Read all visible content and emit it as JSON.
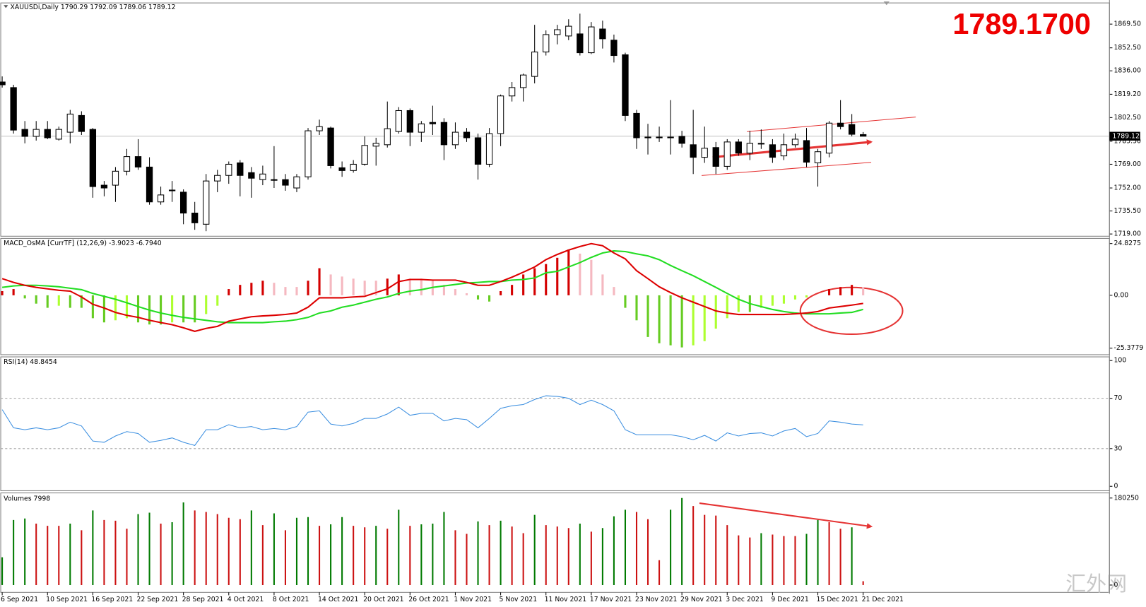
{
  "chart_data": [
    {
      "type": "candlestick",
      "title": "XAUUSDi,Daily  1790.29 1792.09 1789.06 1789.12",
      "annotation": "1789.1700",
      "categories": [
        "6 Sep 2021",
        null,
        null,
        null,
        "10 Sep 2021",
        null,
        null,
        null,
        "16 Sep 2021",
        null,
        null,
        null,
        "22 Sep 2021",
        null,
        null,
        null,
        "28 Sep 2021",
        null,
        null,
        null,
        "4 Oct 2021",
        null,
        null,
        null,
        "8 Oct 2021",
        null,
        null,
        null,
        "14 Oct 2021",
        null,
        null,
        null,
        "20 Oct 2021",
        null,
        null,
        null,
        "26 Oct 2021",
        null,
        null,
        null,
        "1 Nov 2021",
        null,
        null,
        null,
        "5 Nov 2021",
        null,
        null,
        null,
        "11 Nov 2021",
        null,
        null,
        null,
        "17 Nov 2021",
        null,
        null,
        null,
        "23 Nov 2021",
        null,
        null,
        null,
        "29 Nov 2021",
        null,
        null,
        null,
        "3 Dec 2021",
        null,
        null,
        null,
        "9 Dec 2021",
        null,
        null,
        null,
        "15 Dec 2021",
        null,
        null,
        null,
        "21 Dec 2021"
      ],
      "open": [
        1828,
        1824,
        1794,
        1789,
        1794,
        1787,
        1792,
        1804,
        1794,
        1754,
        1754,
        1764,
        1774.5,
        1767,
        1742,
        1750,
        1749,
        1734,
        1726,
        1757,
        1761,
        1770,
        1763,
        1758,
        1758,
        1758,
        1752,
        1760,
        1793,
        1795,
        1766.5,
        1764.5,
        1769,
        1782,
        1783,
        1792.5,
        1807.5,
        1792,
        1799,
        1799,
        1783,
        1792,
        1788,
        1769,
        1791,
        1818,
        1824,
        1832,
        1849.5,
        1862,
        1861,
        1862.5,
        1849,
        1866,
        1858,
        1847.5,
        1805.5,
        1788,
        1788.5,
        1788,
        1789,
        1783,
        1774,
        1781,
        1767.5,
        1785,
        1777,
        1784,
        1783,
        1775,
        1783,
        1786,
        1770,
        1777,
        1798.5,
        1797.5,
        1790.29
      ],
      "high": [
        1832,
        1826,
        1800,
        1800,
        1800,
        1796,
        1808,
        1807,
        1795,
        1757,
        1767,
        1780,
        1787,
        1774,
        1753,
        1757,
        1751,
        1742,
        1762,
        1765,
        1771,
        1772,
        1767,
        1768,
        1782,
        1762,
        1762,
        1795,
        1801,
        1796,
        1771,
        1772,
        1789,
        1788,
        1814,
        1810,
        1809,
        1800,
        1811,
        1802,
        1799,
        1795,
        1791,
        1795,
        1819,
        1828,
        1834,
        1869,
        1865,
        1869,
        1873,
        1877,
        1871,
        1872,
        1862,
        1849,
        1808,
        1798,
        1796,
        1815,
        1793,
        1808,
        1796,
        1785,
        1787,
        1787,
        1793,
        1794,
        1787,
        1791,
        1791,
        1795,
        1780,
        1800,
        1815,
        1805,
        1792.09
      ],
      "low": [
        1824,
        1791,
        1784,
        1786,
        1787,
        1786,
        1784,
        1790,
        1745,
        1746,
        1742,
        1761,
        1765,
        1740,
        1740,
        1742,
        1726,
        1722,
        1721,
        1749,
        1755,
        1746,
        1745,
        1754,
        1752,
        1750,
        1749,
        1758,
        1790,
        1766,
        1760,
        1763,
        1768,
        1768,
        1781,
        1791,
        1782,
        1785,
        1790,
        1772,
        1780,
        1785,
        1758,
        1767,
        1782,
        1814,
        1814,
        1827,
        1847,
        1855,
        1858,
        1847,
        1848,
        1852,
        1842,
        1800,
        1780,
        1776,
        1785,
        1776,
        1781,
        1762,
        1770,
        1762,
        1765,
        1775,
        1772,
        1780,
        1770,
        1772,
        1781,
        1767,
        1753,
        1774,
        1794,
        1789,
        1789.06
      ],
      "close": [
        1826,
        1793.5,
        1789,
        1794,
        1788,
        1794,
        1805,
        1792.5,
        1753,
        1752,
        1764,
        1774.5,
        1767,
        1742,
        1747,
        1750.5,
        1734,
        1727,
        1757,
        1761,
        1769,
        1761,
        1759,
        1762,
        1757.5,
        1754,
        1760,
        1793,
        1796,
        1768,
        1764.5,
        1769,
        1782.5,
        1784,
        1794.5,
        1807.5,
        1792,
        1798,
        1798,
        1783,
        1792,
        1788,
        1769,
        1791,
        1818,
        1824,
        1833,
        1849.5,
        1862,
        1865.5,
        1868,
        1849,
        1867.5,
        1859,
        1847,
        1804,
        1788,
        1788.5,
        1788,
        1788.5,
        1784,
        1774,
        1780.5,
        1767.5,
        1785,
        1777,
        1784,
        1783.5,
        1774,
        1783,
        1787,
        1770.5,
        1778,
        1798.5,
        1796,
        1790.5,
        1789.12
      ],
      "up_color": "#ffffff",
      "down_color": "#000000",
      "line_color": "#000000",
      "ylim": [
        1717.4,
        1884.7
      ],
      "yticks": [
        {
          "value": 1869.5,
          "label": "1869.50"
        },
        {
          "value": 1852.5,
          "label": "1852.50"
        },
        {
          "value": 1836,
          "label": "1836.00"
        },
        {
          "value": 1819.2,
          "label": "1819.20"
        },
        {
          "value": 1802.5,
          "label": "1802.50"
        },
        {
          "value": 1785.5,
          "label": "1785.50"
        },
        {
          "value": 1769,
          "label": "1769.00"
        },
        {
          "value": 1752,
          "label": "1752.00"
        },
        {
          "value": 1735.5,
          "label": "1735.50"
        },
        {
          "value": 1719,
          "label": "1719.00"
        }
      ]
    },
    {
      "type": "macd",
      "title": "MACD_OsMA [CurrTF] (12,26,9) -3.9023 -6.7940",
      "macd": {
        "color": "#dd0000",
        "values": [
          8.0,
          6.2,
          4.8,
          3.8,
          3.1,
          2.4,
          2.0,
          -0.8,
          -4.3,
          -6.1,
          -8.2,
          -9.6,
          -10.6,
          -12.0,
          -13.1,
          -14.1,
          -15.6,
          -17.3,
          -15.9,
          -14.9,
          -12.4,
          -11.3,
          -10.3,
          -9.9,
          -9.6,
          -9.2,
          -8.5,
          -5.7,
          -1.2,
          -1.2,
          -1.2,
          -0.8,
          -0.5,
          1.3,
          3.1,
          6.6,
          7.6,
          7.6,
          7.3,
          7.3,
          7.3,
          6.2,
          4.8,
          4.8,
          6.6,
          8.7,
          11.1,
          13.6,
          17.1,
          19.6,
          21.7,
          23.4,
          24.8,
          23.8,
          20.3,
          17.5,
          11.8,
          8.0,
          4.1,
          1.3,
          -1.2,
          -3.3,
          -5.4,
          -7.5,
          -8.5,
          -9.2,
          -9.2,
          -9.2,
          -9.2,
          -9.2,
          -8.9,
          -8.5,
          -7.8,
          -6.1,
          -5.4,
          -4.7,
          -3.9023
        ]
      },
      "signal": {
        "color": "#22dd22",
        "values": [
          3.8,
          4.5,
          4.8,
          4.8,
          4.5,
          4.1,
          3.4,
          2.7,
          0.9,
          -0.5,
          -1.9,
          -3.6,
          -5.4,
          -7.1,
          -8.5,
          -9.6,
          -10.6,
          -11.3,
          -12.0,
          -12.7,
          -13.1,
          -13.1,
          -13.1,
          -13.1,
          -12.7,
          -12.4,
          -11.7,
          -10.6,
          -8.5,
          -7.5,
          -5.7,
          -4.7,
          -3.3,
          -1.9,
          -0.8,
          0.9,
          2.0,
          2.7,
          3.8,
          4.5,
          5.2,
          5.9,
          6.2,
          6.6,
          6.6,
          7.3,
          7.6,
          8.3,
          10.8,
          11.5,
          13.6,
          15.7,
          18.2,
          20.3,
          21.3,
          21.0,
          19.9,
          18.9,
          17.1,
          14.3,
          11.8,
          9.4,
          6.6,
          3.8,
          0.9,
          -1.9,
          -4.0,
          -5.4,
          -6.8,
          -7.8,
          -8.5,
          -8.9,
          -8.9,
          -8.9,
          -8.5,
          -8.2,
          -6.794
        ]
      },
      "histogram": {
        "colors": {
          "rising_above": "#d40000",
          "falling_above": "#f5b8c0",
          "falling_below": "#66cc22",
          "rising_below": "#adff2f"
        },
        "values": [
          2,
          3,
          -1.5,
          -4,
          -6,
          -5,
          -6,
          -6,
          -11,
          -13,
          -12,
          -11,
          -13,
          -14,
          -14,
          -13,
          -13,
          -13,
          -9,
          -5,
          3,
          5,
          6,
          7,
          6,
          4,
          4,
          7,
          13,
          10,
          9,
          8,
          7,
          7,
          8,
          10,
          8,
          8,
          7,
          5,
          3,
          1,
          -2,
          -3,
          2,
          5,
          10,
          13,
          15,
          18,
          22,
          20,
          17,
          10,
          4,
          -6,
          -12,
          -20,
          -23,
          -24,
          -25,
          -24,
          -22,
          -16,
          -11,
          -8,
          -8,
          -6,
          -5,
          -4,
          -2,
          -1,
          0,
          3,
          4,
          5,
          4
        ]
      },
      "ylim": [
        -28.5,
        27.3
      ],
      "yticks": [
        24.8275,
        {
          "value": 0,
          "label": "0.00"
        },
        -25.3779
      ]
    },
    {
      "type": "line",
      "title": "RSI(14) 48.8454",
      "color": "#3a8ee0",
      "values": [
        61,
        46.5,
        45,
        46.5,
        45,
        46.5,
        51,
        48,
        36,
        35,
        40,
        43.5,
        42,
        35,
        36.5,
        38.5,
        35,
        32.5,
        45,
        45,
        49,
        46.5,
        47.5,
        45,
        46,
        45,
        47.5,
        59,
        60,
        49.5,
        48,
        50,
        54,
        54,
        57.5,
        63,
        56.5,
        58,
        58,
        52,
        54,
        53,
        46.5,
        54,
        62,
        64,
        65,
        69,
        72,
        71.5,
        70,
        65,
        68.5,
        65,
        60,
        45,
        41,
        41,
        41,
        41,
        39.5,
        37,
        40.5,
        36,
        42.5,
        40,
        42,
        42.5,
        40,
        44,
        46,
        39.5,
        42,
        52,
        51,
        49.5,
        48.8454
      ],
      "levels": [
        70,
        30
      ],
      "ylim": [
        -3.5,
        102.9
      ],
      "yticks": [
        100,
        70,
        30,
        0
      ]
    },
    {
      "type": "bar",
      "title": "Volumes 7998",
      "up_color": "#007a00",
      "down_color": "#cc1111",
      "values": [
        57560,
        134810,
        137840,
        127230,
        122690,
        122690,
        127230,
        113600,
        154500,
        134810,
        133290,
        116630,
        146930,
        149960,
        127230,
        130260,
        171160,
        154500,
        151470,
        146930,
        139350,
        136320,
        154500,
        124210,
        148440,
        113600,
        139350,
        140870,
        122690,
        125720,
        140870,
        122690,
        119660,
        122690,
        116630,
        156010,
        122690,
        125720,
        127230,
        151470,
        113600,
        106030,
        131780,
        124210,
        133290,
        121180,
        107540,
        145410,
        124210,
        121180,
        118150,
        127230,
        110570,
        118150,
        142380,
        156010,
        151470,
        136320,
        51500,
        156010,
        180250,
        163590,
        145410,
        143900,
        124210,
        103000,
        98460,
        107540,
        104510,
        101480,
        101480,
        106030,
        134810,
        130260,
        116630,
        119660,
        7998
      ],
      "ylim": [
        -15150,
        190850
      ],
      "yticks": [
        180250,
        0
      ]
    }
  ],
  "watermark": "汇外网"
}
